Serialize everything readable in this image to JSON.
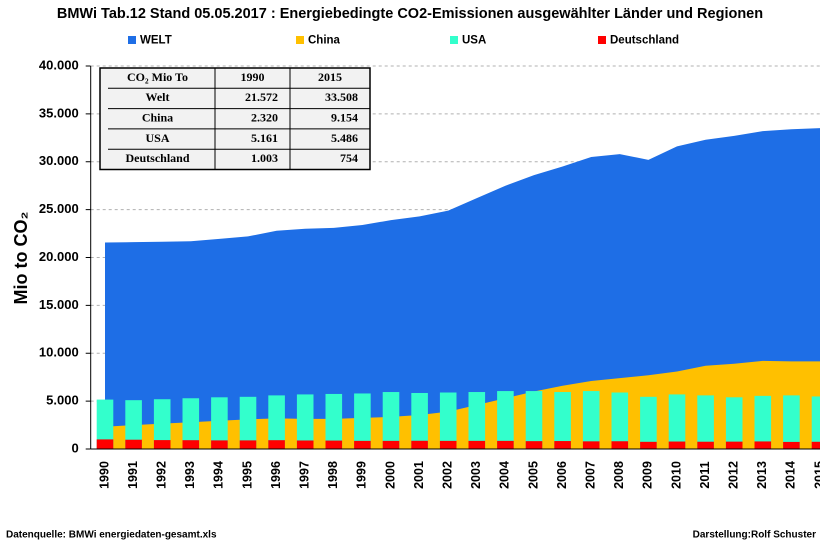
{
  "chart_data": {
    "type": "area-bar",
    "title": "BMWi Tab.12  Stand 05.05.2017 :  Energiebedingte CO2-Emissionen ausgewählter Länder und Regionen",
    "ylabel": "Mio to CO₂",
    "categories": [
      "1990",
      "1991",
      "1992",
      "1993",
      "1994",
      "1995",
      "1996",
      "1997",
      "1998",
      "1999",
      "2000",
      "2001",
      "2002",
      "2003",
      "2004",
      "2005",
      "2006",
      "2007",
      "2008",
      "2009",
      "2010",
      "2011",
      "2012",
      "2013",
      "2014",
      "2015"
    ],
    "series": [
      {
        "name": "WELT",
        "color": "#1e6ee6",
        "kind": "area",
        "values": [
          21572,
          21600,
          21650,
          21700,
          21950,
          22200,
          22800,
          23000,
          23100,
          23400,
          23900,
          24300,
          24900,
          26200,
          27500,
          28600,
          29500,
          30500,
          30800,
          30200,
          31600,
          32300,
          32700,
          33200,
          33400,
          33508
        ]
      },
      {
        "name": "China",
        "color": "#ffc000",
        "kind": "area",
        "values": [
          2320,
          2500,
          2650,
          2800,
          2950,
          3100,
          3200,
          3150,
          3150,
          3250,
          3350,
          3550,
          3900,
          4600,
          5300,
          6000,
          6600,
          7100,
          7400,
          7700,
          8100,
          8700,
          8900,
          9200,
          9150,
          9154
        ]
      },
      {
        "name": "USA",
        "color": "#33ffcc",
        "kind": "bar",
        "values": [
          5161,
          5100,
          5200,
          5300,
          5400,
          5450,
          5600,
          5700,
          5750,
          5800,
          5950,
          5850,
          5900,
          5950,
          6050,
          6050,
          5950,
          6050,
          5900,
          5450,
          5700,
          5600,
          5400,
          5550,
          5600,
          5486
        ]
      },
      {
        "name": "Deutschland",
        "color": "#ff0000",
        "kind": "bar",
        "values": [
          1003,
          970,
          930,
          920,
          900,
          900,
          920,
          890,
          880,
          850,
          850,
          860,
          850,
          850,
          850,
          820,
          830,
          800,
          810,
          750,
          780,
          760,
          770,
          790,
          740,
          754
        ]
      }
    ],
    "ylim": [
      0,
      40000
    ],
    "yticks": [
      0,
      {
        "value": 5000,
        "label": "5.000"
      },
      {
        "value": 10000,
        "label": "10.000"
      },
      {
        "value": 15000,
        "label": "15.000"
      },
      {
        "value": 20000,
        "label": "20.000"
      },
      {
        "value": 25000,
        "label": "25.000"
      },
      {
        "value": 30000,
        "label": "30.000"
      },
      {
        "value": 35000,
        "label": "35.000"
      },
      {
        "value": 40000,
        "label": "40.000"
      }
    ],
    "grid": true,
    "legend": "top"
  },
  "table": {
    "header": [
      "CO₂ Mio To",
      "1990",
      "2015"
    ],
    "rows": [
      [
        "Welt",
        "21.572",
        "33.508"
      ],
      [
        "China",
        "2.320",
        "9.154"
      ],
      [
        "USA",
        "5.161",
        "5.486"
      ],
      [
        "Deutschland",
        "1.003",
        "754"
      ]
    ]
  },
  "footer": {
    "source": "Datenquelle:  BMWi  energiedaten-gesamt.xls",
    "credit": "Darstellung:Rolf Schuster"
  }
}
